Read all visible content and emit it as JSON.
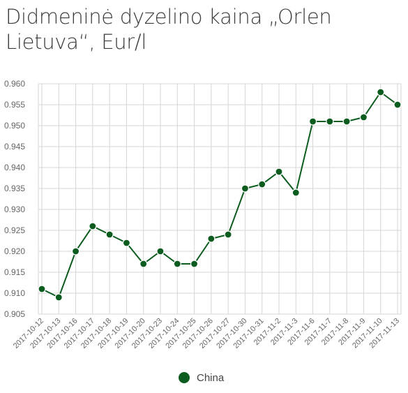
{
  "chart_data": {
    "type": "line",
    "title": "Didmeninė dyzelino kaina „Orlen Lietuva“, Eur/l",
    "xlabel": "",
    "ylabel": "",
    "categories": [
      "2017-10-12",
      "2017-10-13",
      "2017-10-16",
      "2017-10-17",
      "2017-10-18",
      "2017-10-19",
      "2017-10-20",
      "2017-10-23",
      "2017-10-24",
      "2017-10-25",
      "2017-10-26",
      "2017-10-27",
      "2017-10-30",
      "2017-10-31",
      "2017-11-2",
      "2017-11-3",
      "2017-11-6",
      "2017-11-7",
      "2017-11-8",
      "2017-11-9",
      "2017-11-10",
      "2017-11-13"
    ],
    "series": [
      {
        "name": "China",
        "values": [
          0.911,
          0.909,
          0.92,
          0.926,
          0.924,
          0.922,
          0.917,
          0.92,
          0.917,
          0.917,
          0.923,
          0.924,
          0.935,
          0.936,
          0.939,
          0.934,
          0.951,
          0.951,
          0.951,
          0.952,
          0.958,
          0.955
        ],
        "color": "#0d5c1f"
      }
    ],
    "ylim": [
      0.905,
      0.96
    ],
    "yticks": [
      "0.960",
      "0.955",
      "0.950",
      "0.945",
      "0.940",
      "0.935",
      "0.930",
      "0.925",
      "0.920",
      "0.915",
      "0.910",
      "0.905"
    ],
    "grid": true,
    "legend": "bottom-center"
  }
}
